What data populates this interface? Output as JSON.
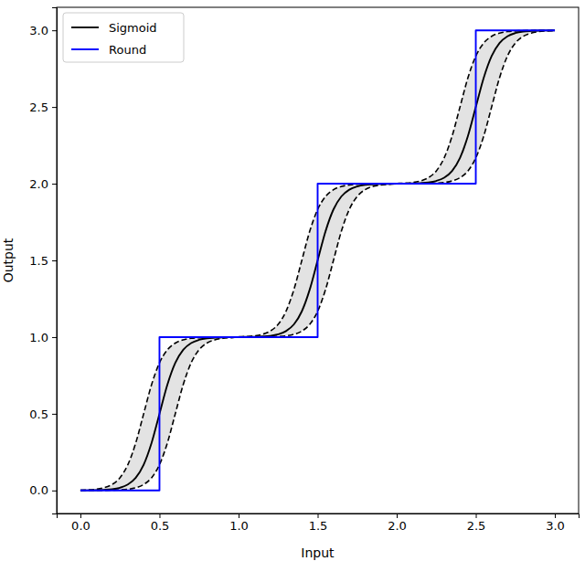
{
  "chart_data": {
    "type": "line",
    "x_label": "Input",
    "y_label": "Output",
    "x": [
      0,
      0.05,
      0.1,
      0.15,
      0.2,
      0.25,
      0.3,
      0.35,
      0.4,
      0.45,
      0.5,
      0.55,
      0.6,
      0.65,
      0.7,
      0.75,
      0.8,
      0.85,
      0.9,
      0.95,
      1,
      1.05,
      1.1,
      1.15,
      1.2,
      1.25,
      1.3,
      1.35,
      1.4,
      1.45,
      1.5,
      1.55,
      1.6,
      1.65,
      1.7,
      1.75,
      1.8,
      1.85,
      1.9,
      1.95,
      2,
      2.05,
      2.1,
      2.15,
      2.2,
      2.25,
      2.3,
      2.35,
      2.4,
      2.45,
      2.5,
      2.55,
      2.6,
      2.65,
      2.7,
      2.75,
      2.8,
      2.85,
      2.9,
      2.95,
      3
    ],
    "series": [
      {
        "name": "Sigmoid",
        "color": "#000000",
        "line_style": "solid",
        "values": [
          0,
          0.001,
          0.002,
          0.004,
          0.008,
          0.018,
          0.039,
          0.083,
          0.168,
          0.31,
          0.5,
          0.69,
          0.832,
          0.917,
          0.961,
          0.982,
          0.992,
          0.996,
          0.998,
          0.999,
          1,
          1.001,
          1.002,
          1.004,
          1.008,
          1.018,
          1.039,
          1.083,
          1.168,
          1.31,
          1.5,
          1.69,
          1.832,
          1.917,
          1.961,
          1.982,
          1.992,
          1.996,
          1.998,
          1.999,
          2,
          2.001,
          2.002,
          2.004,
          2.008,
          2.018,
          2.039,
          2.083,
          2.168,
          2.31,
          2.5,
          2.69,
          2.832,
          2.917,
          2.961,
          2.982,
          2.992,
          2.996,
          2.998,
          2.999,
          3
        ]
      },
      {
        "color": "#000000",
        "line_style": "dashed",
        "values": [
          0.002,
          0.004,
          0.008,
          0.018,
          0.039,
          0.083,
          0.168,
          0.31,
          0.5,
          0.69,
          0.832,
          0.917,
          0.961,
          0.982,
          0.992,
          0.996,
          0.998,
          0.999,
          1,
          1,
          1.002,
          1.004,
          1.008,
          1.018,
          1.039,
          1.083,
          1.168,
          1.31,
          1.5,
          1.69,
          1.832,
          1.917,
          1.961,
          1.982,
          1.992,
          1.996,
          1.998,
          1.999,
          2,
          2,
          2.002,
          2.004,
          2.008,
          2.018,
          2.039,
          2.083,
          2.168,
          2.31,
          2.5,
          2.69,
          2.832,
          2.917,
          2.961,
          2.982,
          2.992,
          2.996,
          2.998,
          2.999,
          3,
          3,
          3
        ]
      },
      {
        "color": "#000000",
        "line_style": "dashed",
        "values": [
          0,
          0,
          0,
          0.001,
          0.002,
          0.004,
          0.008,
          0.018,
          0.039,
          0.083,
          0.168,
          0.31,
          0.5,
          0.69,
          0.832,
          0.917,
          0.961,
          0.982,
          0.992,
          0.996,
          1,
          1,
          1,
          1.001,
          1.002,
          1.004,
          1.008,
          1.018,
          1.039,
          1.083,
          1.168,
          1.31,
          1.5,
          1.69,
          1.832,
          1.917,
          1.961,
          1.982,
          1.992,
          1.996,
          2,
          2,
          2,
          2.001,
          2.002,
          2.004,
          2.008,
          2.018,
          2.039,
          2.083,
          2.168,
          2.31,
          2.5,
          2.69,
          2.832,
          2.917,
          2.961,
          2.982,
          2.992,
          2.996,
          2.998
        ]
      },
      {
        "name": "Round",
        "color": "#0000ff",
        "line_style": "solid",
        "x": [
          0,
          0.5,
          0.5,
          1.5,
          1.5,
          2.5,
          2.5,
          3
        ],
        "values": [
          0,
          0,
          1,
          1,
          2,
          2,
          3,
          3
        ]
      }
    ],
    "xlim": [
      -0.15,
      3.15
    ],
    "ylim": [
      -0.15,
      3.15
    ],
    "xticks": [
      {
        "value": 0,
        "label": "0.0"
      },
      {
        "value": 0.5,
        "label": "0.5"
      },
      {
        "value": 1,
        "label": "1.0"
      },
      {
        "value": 1.5,
        "label": "1.5"
      },
      {
        "value": 2,
        "label": "2.0"
      },
      {
        "value": 2.5,
        "label": "2.5"
      },
      {
        "value": 3,
        "label": "3.0"
      }
    ],
    "yticks": [
      {
        "value": 0,
        "label": "0.0"
      },
      {
        "value": 0.5,
        "label": "0.5"
      },
      {
        "value": 1,
        "label": "1.0"
      },
      {
        "value": 1.5,
        "label": "1.5"
      },
      {
        "value": 2,
        "label": "2.0"
      },
      {
        "value": 2.5,
        "label": "2.5"
      },
      {
        "value": 3,
        "label": "3.0"
      }
    ],
    "grid": false,
    "legend": "upper left"
  }
}
